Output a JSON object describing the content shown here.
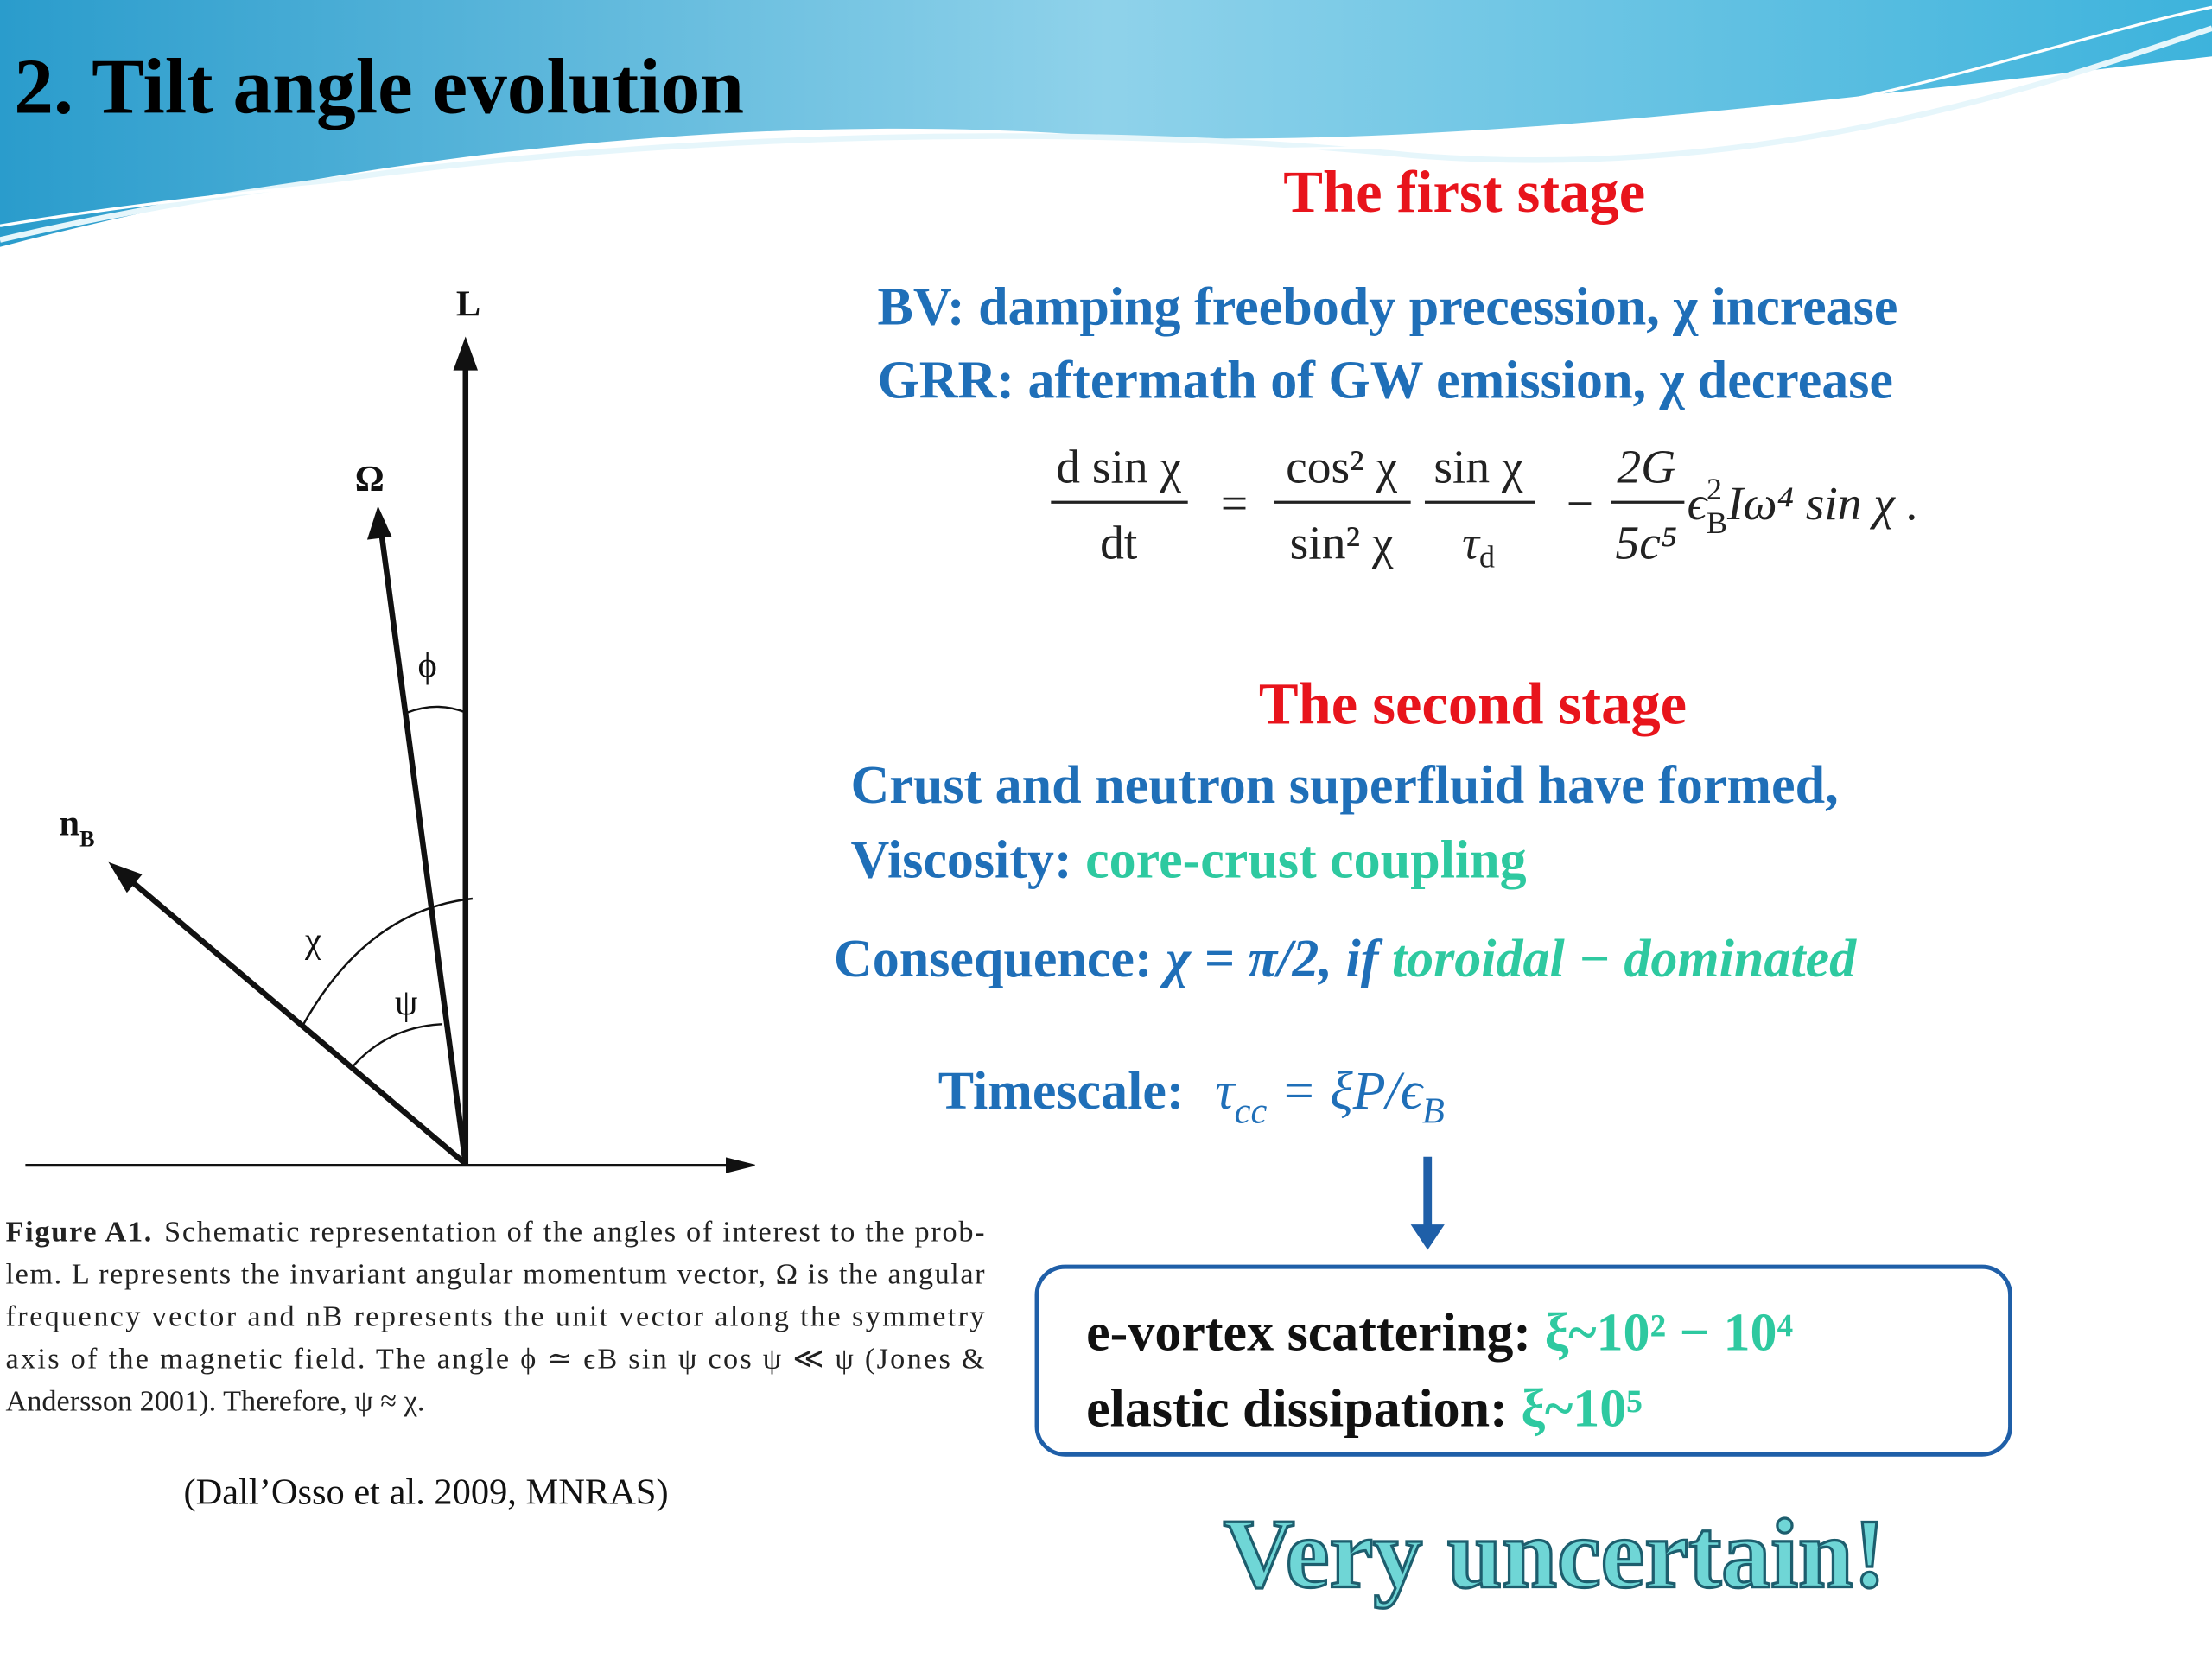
{
  "title": "2. Tilt angle evolution",
  "first_stage": {
    "heading": "The first stage",
    "lines": [
      "BV: damping freebody precession, χ increase",
      "GRR: aftermath of GW emission, χ decrease"
    ],
    "equation": {
      "lhs_num": "d sin χ",
      "lhs_den": "dt",
      "eq": "=",
      "f1_num": "cos² χ",
      "f1_den": "sin² χ",
      "f2_num": "sin χ",
      "f2_den": "τ",
      "f2_den_sub": "d",
      "minus": "−",
      "f3_num": "2G",
      "f3_den": "5c⁵",
      "tail_eps": "ϵ",
      "tail_sup": "2",
      "tail_sub": "B",
      "tail_rest": "Iω⁴ sin χ ."
    }
  },
  "figure": {
    "labels": {
      "L": "L",
      "omega": "Ω",
      "phi": "ϕ",
      "nB": "n",
      "nB_sub": "B",
      "chi": "χ",
      "psi": "ψ"
    },
    "caption_label": "Figure A1.",
    "caption_first": "Schematic representation of the angles of interest to the prob-",
    "caption_lines": [
      "lem. L represents the invariant angular momentum vector, Ω is the angular",
      "frequency vector and nB represents the unit vector along the symmetry",
      "axis of the magnetic field. The angle ϕ ≃ ϵB sin ψ cos ψ ≪ ψ (Jones &",
      "Andersson 2001). Therefore, ψ ≈ χ."
    ],
    "citation": "(Dall’Osso et al. 2009, MNRAS)"
  },
  "second_stage": {
    "heading": "The second stage",
    "line1": "Crust and neutron superfluid have formed,",
    "line2_label": "Viscosity: ",
    "line2_value": "core-crust coupling",
    "consequence_label": "Consequence: ",
    "consequence_math": "χ = π/2, if ",
    "consequence_value": "toroidal − dominated",
    "timescale_label": "Timescale:",
    "timescale_tau": "τ",
    "timescale_sub": "cc",
    "timescale_rest": " = ξP/ϵ",
    "timescale_sub2": "B"
  },
  "box": {
    "line1_label": "e-vortex scattering: ",
    "line1_value": "ξ~10² − 10⁴",
    "line2_label": "elastic dissipation: ",
    "line2_value": "ξ~10⁵"
  },
  "conclusion": "Very uncertain!"
}
